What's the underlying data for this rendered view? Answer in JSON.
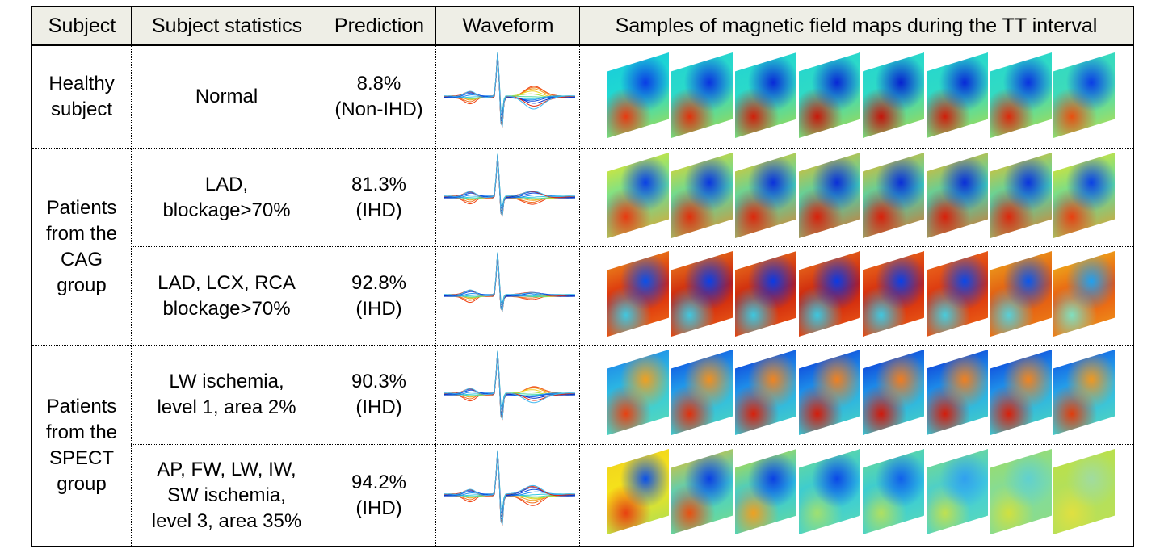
{
  "headers": {
    "subject": "Subject",
    "statistics": "Subject statistics",
    "prediction": "Prediction",
    "waveform": "Waveform",
    "maps": "Samples of magnetic field maps during the TT interval"
  },
  "groups": {
    "healthy": [
      "Healthy",
      "subject"
    ],
    "cag": [
      "Patients",
      "from the",
      "CAG",
      "group"
    ],
    "spect": [
      "Patients",
      "from the",
      "SPECT",
      "group"
    ]
  },
  "rows": [
    {
      "stats": [
        "Normal"
      ],
      "prediction": [
        "8.8%",
        "(Non-IHD)"
      ],
      "maps": [
        [
          "#19c8dc",
          "#20dcd0",
          "#0a3ce6",
          "#e83a10",
          "#b8dc40"
        ],
        [
          "#22d2d2",
          "#2cdcc8",
          "#0a32e0",
          "#e0320c",
          "#b0d840"
        ],
        [
          "#22d2d2",
          "#2cdcc8",
          "#0828d8",
          "#d0200a",
          "#b0d840"
        ],
        [
          "#24d4d0",
          "#30dcc4",
          "#0826d6",
          "#c8180a",
          "#b4d840"
        ],
        [
          "#24d4d0",
          "#30dcc4",
          "#0620d0",
          "#c4140a",
          "#b4d840"
        ],
        [
          "#24d4d0",
          "#30dcc4",
          "#0828d8",
          "#d01e0a",
          "#b8dc40"
        ],
        [
          "#26d6ce",
          "#34dcc0",
          "#0a32e0",
          "#dc2a0c",
          "#bcdc40"
        ],
        [
          "#30d8c4",
          "#40dcb8",
          "#0a3ce6",
          "#e85010",
          "#c8e040"
        ]
      ]
    },
    {
      "stats": [
        "LAD,",
        "blockage>70%"
      ],
      "prediction": [
        "81.3%",
        "(IHD)"
      ],
      "maps": [
        [
          "#f6e61a",
          "#62e0a0",
          "#0a40e6",
          "#e83a10",
          "#f0a020"
        ],
        [
          "#f6d21a",
          "#50dcac",
          "#0a36e0",
          "#e0300c",
          "#f08c20"
        ],
        [
          "#f6c41a",
          "#46d8b4",
          "#0a30dc",
          "#dc280c",
          "#f07c1c"
        ],
        [
          "#f6b81a",
          "#40d6b8",
          "#0a2ed8",
          "#d8200a",
          "#ec6c1c"
        ],
        [
          "#f6b41a",
          "#40d6b8",
          "#0a2ed8",
          "#d8200a",
          "#ec6c1c"
        ],
        [
          "#f6b41a",
          "#40d6b8",
          "#0a2ed8",
          "#d8200a",
          "#ec6c1c"
        ],
        [
          "#f6bc1a",
          "#46d8b4",
          "#0a34de",
          "#dc280c",
          "#f07c1c"
        ],
        [
          "#f6e41a",
          "#5adca4",
          "#0a40e6",
          "#e84010",
          "#f09c20"
        ]
      ]
    },
    {
      "stats": [
        "LAD, LCX, RCA",
        "blockage>70%"
      ],
      "prediction": [
        "92.8%",
        "(IHD)"
      ],
      "maps": [
        [
          "#f0a020",
          "#d8200a",
          "#0a50ea",
          "#40c8e0",
          "#f07818"
        ],
        [
          "#f08c20",
          "#c8180a",
          "#0a40e6",
          "#40c8e0",
          "#f06818"
        ],
        [
          "#f08420",
          "#c8180a",
          "#0a3ae4",
          "#3cc8e0",
          "#f06418"
        ],
        [
          "#f08020",
          "#c8180a",
          "#0a3ae4",
          "#3cc8e0",
          "#f06418"
        ],
        [
          "#f07c20",
          "#d0200a",
          "#0a40e6",
          "#40c8e0",
          "#f06818"
        ],
        [
          "#f07820",
          "#d82a0c",
          "#0a48e8",
          "#48ccdc",
          "#f07018"
        ],
        [
          "#f0b01e",
          "#e05010",
          "#0a58ec",
          "#58d0d8",
          "#f08818"
        ],
        [
          "#f0c81e",
          "#e85010",
          "#20a0f0",
          "#80e0c0",
          "#f0a01c"
        ]
      ]
    },
    {
      "stats": [
        "LW ischemia,",
        "level 1, area 2%"
      ],
      "prediction": [
        "90.3%",
        "(IHD)"
      ],
      "maps": [
        [
          "#1a78ec",
          "#30c8e0",
          "#f0a020",
          "#e84010",
          "#60dcb0"
        ],
        [
          "#0a40e0",
          "#28b4ec",
          "#f09020",
          "#e0300c",
          "#50d8b8"
        ],
        [
          "#0a30d8",
          "#24aaee",
          "#f08420",
          "#d8200a",
          "#4cd6bc"
        ],
        [
          "#0a2cd6",
          "#22a8ee",
          "#f08020",
          "#d41c0a",
          "#4cd6bc"
        ],
        [
          "#0a28d4",
          "#22a8ee",
          "#f07c20",
          "#d0180a",
          "#4cd6bc"
        ],
        [
          "#0a28d4",
          "#22a8ee",
          "#f08020",
          "#d41c0a",
          "#4cd6bc"
        ],
        [
          "#0a30d8",
          "#24aaee",
          "#f08420",
          "#d8200a",
          "#50d8b8"
        ],
        [
          "#0a48e4",
          "#2cb8ea",
          "#f09820",
          "#e03c0c",
          "#58dab4"
        ]
      ]
    },
    {
      "stats": [
        "AP, FW, LW, IW,",
        "SW ischemia,",
        "level 3, area 35%"
      ],
      "prediction": [
        "94.2%",
        "(IHD)"
      ],
      "maps": [
        [
          "#f0d01e",
          "#f6e61a",
          "#0a50ea",
          "#e84010",
          "#a0dc60"
        ],
        [
          "#f0c01e",
          "#40d0d0",
          "#0a40e4",
          "#e85010",
          "#80dc80"
        ],
        [
          "#c8e030",
          "#30c8e0",
          "#0a40e4",
          "#f0a020",
          "#70dc90"
        ],
        [
          "#70dc90",
          "#30c8e0",
          "#0a48e8",
          "#a0e070",
          "#60dcb0"
        ],
        [
          "#70dc90",
          "#30c8e0",
          "#1060ec",
          "#b0e060",
          "#60dcb0"
        ],
        [
          "#80dc80",
          "#40ccdc",
          "#30a0f0",
          "#c0e050",
          "#60dcb0"
        ],
        [
          "#a0dc60",
          "#80dca0",
          "#60d0d0",
          "#d0e040",
          "#90dc80"
        ],
        [
          "#c0e040",
          "#b0e060",
          "#a0dca0",
          "#e0e040",
          "#c0e050"
        ]
      ]
    }
  ]
}
